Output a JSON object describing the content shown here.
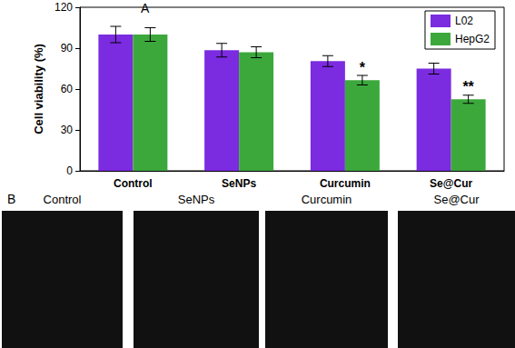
{
  "chart_data": {
    "type": "bar",
    "title": "A",
    "y_label": "Cell viability (%)",
    "categories": [
      "Control",
      "SeNPs",
      "Curcumin",
      "Se@Cur"
    ],
    "series": [
      {
        "name": "L02",
        "color": "#7b2be0",
        "values": [
          100,
          88.5,
          80.5,
          75
        ],
        "errors": [
          6,
          5,
          4,
          4
        ],
        "significance": [
          null,
          null,
          null,
          null
        ]
      },
      {
        "name": "HepG2",
        "color": "#3ca83c",
        "values": [
          100,
          87,
          66.5,
          52.5
        ],
        "errors": [
          5,
          4,
          3.5,
          3
        ],
        "significance": [
          null,
          null,
          "*",
          "**"
        ]
      }
    ],
    "ylim": [
      0,
      120
    ],
    "yticks": [
      0,
      30,
      60,
      90,
      120
    ],
    "grid": false,
    "legend": "top-right"
  },
  "panel_b": {
    "label": "B",
    "titles": [
      "Control",
      "SeNPs",
      "Curcumin",
      "Se@Cur"
    ]
  }
}
